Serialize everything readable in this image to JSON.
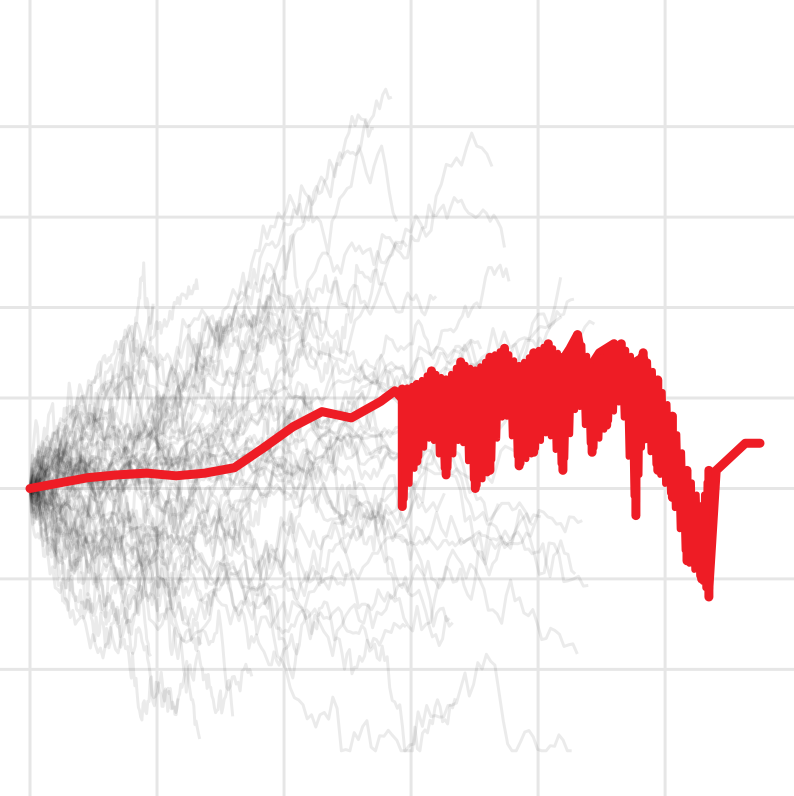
{
  "chart_data": {
    "type": "line",
    "title": "",
    "xlabel": "",
    "ylabel": "",
    "grid": true,
    "legend": "none",
    "xlim": [
      0,
      100
    ],
    "ylim": [
      -3.4,
      5.4
    ],
    "xticks": [
      0,
      17.4,
      34.8,
      52.2,
      69.6,
      87.0
    ],
    "yticks": [
      -2,
      -1,
      0,
      1,
      2,
      3,
      4
    ],
    "colors": {
      "highlight": "#ee1c25",
      "background_series": "#000000",
      "grid": "#e6e6e6"
    },
    "highlight_series": {
      "name": "",
      "points": [
        [
          0,
          0.0
        ],
        [
          4,
          0.06
        ],
        [
          8,
          0.12
        ],
        [
          12,
          0.15
        ],
        [
          16,
          0.17
        ],
        [
          20,
          0.14
        ],
        [
          24,
          0.17
        ],
        [
          28,
          0.23
        ],
        [
          32,
          0.45
        ],
        [
          36,
          0.68
        ],
        [
          40,
          0.85
        ],
        [
          44,
          0.78
        ],
        [
          48,
          0.96
        ],
        [
          50,
          1.08
        ],
        [
          52,
          0.9
        ],
        [
          54,
          1.05
        ],
        [
          55,
          1.2
        ],
        [
          56,
          1.0
        ],
        [
          58,
          1.1
        ],
        [
          60,
          1.25
        ],
        [
          62,
          1.15
        ],
        [
          64,
          1.3
        ],
        [
          65,
          1.45
        ],
        [
          66,
          1.2
        ],
        [
          68,
          1.35
        ],
        [
          70,
          1.5
        ],
        [
          72,
          1.3
        ],
        [
          74,
          1.55
        ],
        [
          75,
          1.7
        ],
        [
          76,
          1.25
        ],
        [
          78,
          1.5
        ],
        [
          80,
          1.6
        ],
        [
          82,
          1.35
        ],
        [
          84,
          1.45
        ],
        [
          85,
          1.2
        ],
        [
          86,
          0.9
        ],
        [
          87,
          0.3
        ],
        [
          88,
          0.1
        ],
        [
          89,
          0.0
        ],
        [
          90,
          -0.2
        ],
        [
          91,
          -0.5
        ],
        [
          92,
          -0.8
        ],
        [
          93,
          -1.1
        ],
        [
          94,
          0.2
        ],
        [
          96,
          0.35
        ],
        [
          98,
          0.5
        ],
        [
          100,
          0.5
        ]
      ],
      "band": [
        [
          51,
          -0.2,
          1.1
        ],
        [
          53,
          0.3,
          1.15
        ],
        [
          55,
          0.6,
          1.3
        ],
        [
          57,
          0.15,
          1.2
        ],
        [
          59,
          0.6,
          1.4
        ],
        [
          61,
          0.0,
          1.3
        ],
        [
          63,
          0.2,
          1.45
        ],
        [
          65,
          0.9,
          1.55
        ],
        [
          67,
          0.25,
          1.35
        ],
        [
          69,
          0.4,
          1.5
        ],
        [
          71,
          0.65,
          1.6
        ],
        [
          73,
          0.2,
          1.45
        ],
        [
          75,
          1.0,
          1.7
        ],
        [
          77,
          0.4,
          1.35
        ],
        [
          79,
          0.7,
          1.5
        ],
        [
          81,
          1.0,
          1.6
        ],
        [
          83,
          -0.3,
          1.4
        ],
        [
          84,
          0.6,
          1.5
        ],
        [
          86,
          0.2,
          1.2
        ],
        [
          88,
          -0.1,
          0.8
        ],
        [
          90,
          -0.8,
          0.2
        ],
        [
          92,
          -1.0,
          -0.2
        ],
        [
          93,
          -1.2,
          0.2
        ]
      ]
    },
    "background_series": {
      "count": 60,
      "opacity": 0.08,
      "x_end_range": [
        15,
        78
      ]
    }
  }
}
